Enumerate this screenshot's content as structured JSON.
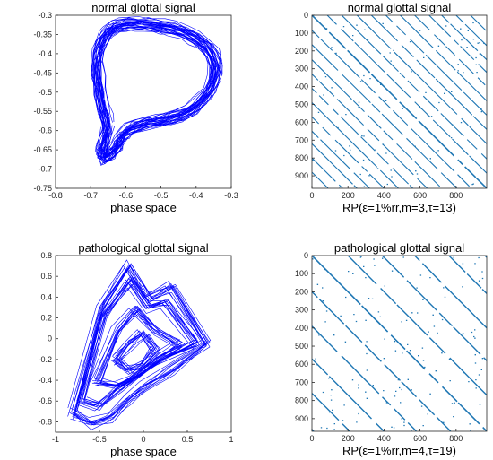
{
  "chart_data": [
    {
      "type": "line",
      "title": "normal glottal signal",
      "xlabel": "phase space",
      "xlim": [
        -0.8,
        -0.3
      ],
      "ylim": [
        -0.75,
        -0.3
      ],
      "xticks": [
        "-0.8",
        "-0.7",
        "-0.6",
        "-0.5",
        "-0.4",
        "-0.3"
      ],
      "yticks": [
        "-0.3",
        "-0.35",
        "-0.4",
        "-0.45",
        "-0.5",
        "-0.55",
        "-0.6",
        "-0.65",
        "-0.7",
        "-0.75"
      ],
      "color": "#0000ff",
      "x": [
        -0.655,
        -0.66,
        -0.668,
        -0.676,
        -0.682,
        -0.684,
        -0.68,
        -0.672,
        -0.66,
        -0.645,
        -0.625,
        -0.6,
        -0.57,
        -0.54,
        -0.505,
        -0.47,
        -0.435,
        -0.405,
        -0.375,
        -0.355,
        -0.345,
        -0.35,
        -0.365,
        -0.39,
        -0.415,
        -0.44,
        -0.47,
        -0.5,
        -0.53,
        -0.56,
        -0.585,
        -0.6,
        -0.61,
        -0.618,
        -0.624,
        -0.632,
        -0.642,
        -0.652,
        -0.66,
        -0.665,
        -0.668,
        -0.67,
        -0.668,
        -0.662,
        -0.655
      ],
      "y": [
        -0.6,
        -0.57,
        -0.54,
        -0.5,
        -0.465,
        -0.43,
        -0.4,
        -0.375,
        -0.355,
        -0.34,
        -0.33,
        -0.325,
        -0.323,
        -0.325,
        -0.33,
        -0.336,
        -0.345,
        -0.36,
        -0.38,
        -0.405,
        -0.435,
        -0.47,
        -0.5,
        -0.528,
        -0.548,
        -0.56,
        -0.568,
        -0.575,
        -0.58,
        -0.587,
        -0.595,
        -0.605,
        -0.615,
        -0.627,
        -0.64,
        -0.652,
        -0.66,
        -0.666,
        -0.67,
        -0.672,
        -0.668,
        -0.66,
        -0.645,
        -0.625,
        -0.6
      ]
    },
    {
      "type": "scatter",
      "title": "normal glottal signal",
      "xlabel": "RP(ε=1%rr,m=3,τ=13)",
      "xlim": [
        0,
        970
      ],
      "ylim": [
        0,
        970
      ],
      "xticks": [
        "0",
        "200",
        "400",
        "600",
        "800"
      ],
      "yticks": [
        "0",
        "100",
        "200",
        "300",
        "400",
        "500",
        "600",
        "700",
        "800",
        "900"
      ],
      "color": "#1f77b4",
      "diagonal_offsets": [
        -880,
        -800,
        -720,
        -650,
        -570,
        -490,
        -410,
        -330,
        -250,
        -165,
        -85,
        0,
        85,
        165,
        250,
        330,
        410,
        490,
        570,
        650,
        720,
        800,
        880
      ]
    },
    {
      "type": "line",
      "title": "pathological glottal  signal",
      "xlabel": "phase space",
      "xlim": [
        -1,
        1
      ],
      "ylim": [
        -0.9,
        0.8
      ],
      "xticks": [
        "-1",
        "-0.5",
        "0",
        "0.5",
        "1"
      ],
      "yticks": [
        "0.8",
        "0.6",
        "0.4",
        "0.2",
        "0",
        "-0.2",
        "-0.4",
        "-0.6",
        "-0.8"
      ],
      "color": "#0000ff",
      "loops": [
        {
          "x": [
            -0.82,
            -0.5,
            -0.2,
            0.05,
            0.3,
            0.7,
            0.3,
            0.0,
            -0.2,
            -0.4,
            -0.6,
            -0.82
          ],
          "y": [
            -0.72,
            0.3,
            0.7,
            0.4,
            0.5,
            -0.05,
            -0.3,
            -0.45,
            -0.6,
            -0.75,
            -0.82,
            -0.72
          ]
        },
        {
          "x": [
            -0.7,
            -0.45,
            -0.15,
            0.05,
            0.25,
            0.6,
            0.2,
            -0.05,
            -0.3,
            -0.5,
            -0.7
          ],
          "y": [
            -0.6,
            0.2,
            0.55,
            0.3,
            0.35,
            -0.05,
            -0.2,
            -0.35,
            -0.5,
            -0.65,
            -0.6
          ]
        },
        {
          "x": [
            -0.55,
            -0.3,
            -0.1,
            0.1,
            0.4,
            0.1,
            -0.1,
            -0.3,
            -0.55
          ],
          "y": [
            -0.4,
            0.1,
            0.3,
            0.1,
            -0.05,
            -0.2,
            -0.35,
            -0.45,
            -0.4
          ]
        },
        {
          "x": [
            -0.3,
            -0.15,
            0.0,
            0.15,
            0.0,
            -0.15,
            -0.3
          ],
          "y": [
            -0.2,
            -0.05,
            0.05,
            -0.1,
            -0.25,
            -0.3,
            -0.2
          ]
        }
      ]
    },
    {
      "type": "scatter",
      "title": "pathological glottal signal",
      "xlabel": "RP(ε=1%rr,m=4,τ=19)",
      "xlim": [
        0,
        970
      ],
      "ylim": [
        0,
        970
      ],
      "xticks": [
        "0",
        "200",
        "400",
        "600",
        "800"
      ],
      "yticks": [
        "0",
        "100",
        "200",
        "300",
        "400",
        "500",
        "600",
        "700",
        "800",
        "900"
      ],
      "color": "#1f77b4",
      "diagonal_offsets": [
        -960,
        -760,
        -570,
        -390,
        -200,
        0,
        200,
        390,
        570,
        760,
        960
      ]
    }
  ]
}
